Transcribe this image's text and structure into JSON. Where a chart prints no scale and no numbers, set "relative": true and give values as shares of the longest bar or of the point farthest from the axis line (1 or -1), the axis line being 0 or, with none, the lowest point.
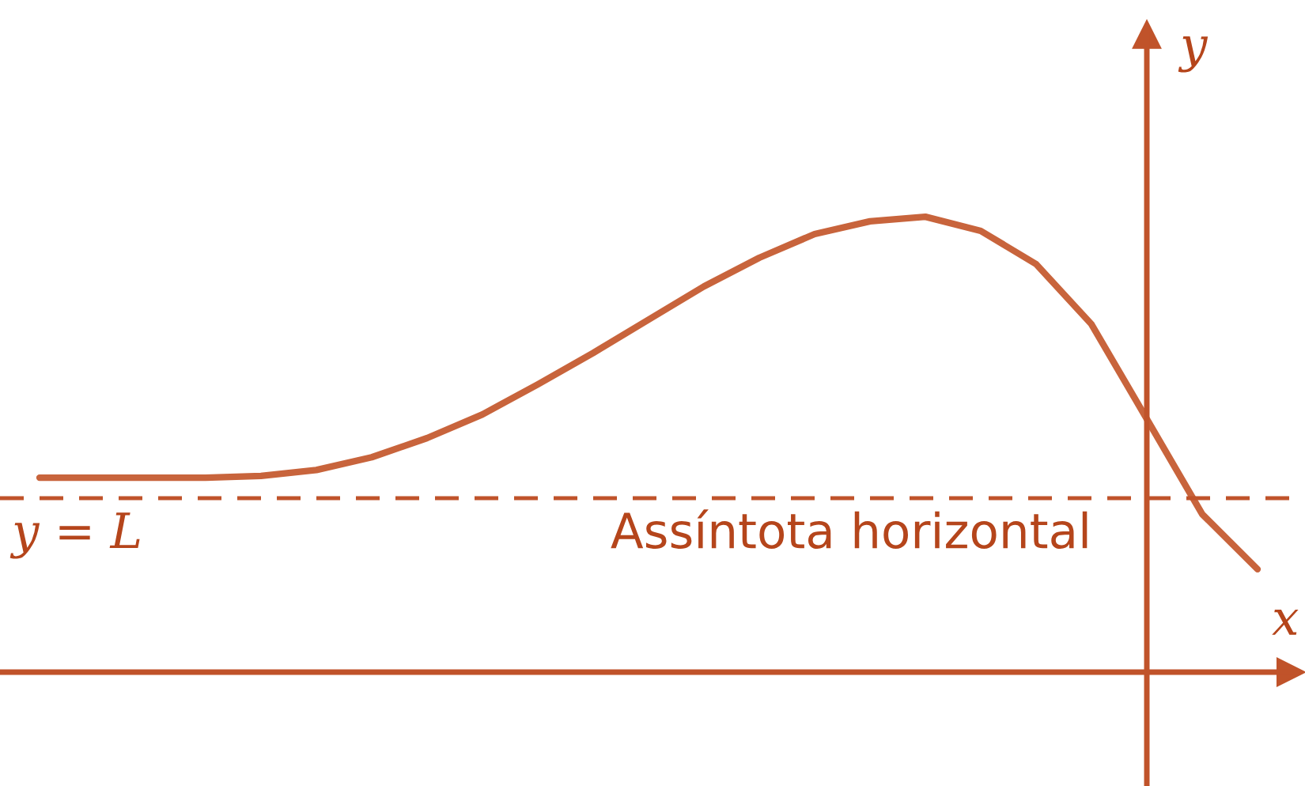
{
  "chart_data": {
    "type": "line",
    "relative": true,
    "xlabel": "x",
    "ylabel": "y",
    "categories": [
      null,
      null,
      null,
      null,
      null,
      null,
      null,
      null,
      null,
      null,
      null,
      null,
      null,
      null,
      null,
      null,
      null,
      null,
      null,
      null,
      null,
      null,
      null
    ],
    "series": [
      {
        "color": "#c8643c",
        "values": [
          0.427,
          0.427,
          0.427,
          0.427,
          0.431,
          0.444,
          0.472,
          0.514,
          0.566,
          0.632,
          0.701,
          0.774,
          0.847,
          0.91,
          0.962,
          0.99,
          1.0,
          0.969,
          0.896,
          0.764,
          0.556,
          0.347,
          0.226
        ]
      }
    ],
    "ref_lines": [
      {
        "axis": "y",
        "value": 0.382,
        "label": "y = L",
        "color": "#c0532a",
        "line_style": "dashed"
      }
    ],
    "annotations": [
      "Assíntota horizontal"
    ],
    "legend": false,
    "marker": "none",
    "line_style": "solid"
  }
}
